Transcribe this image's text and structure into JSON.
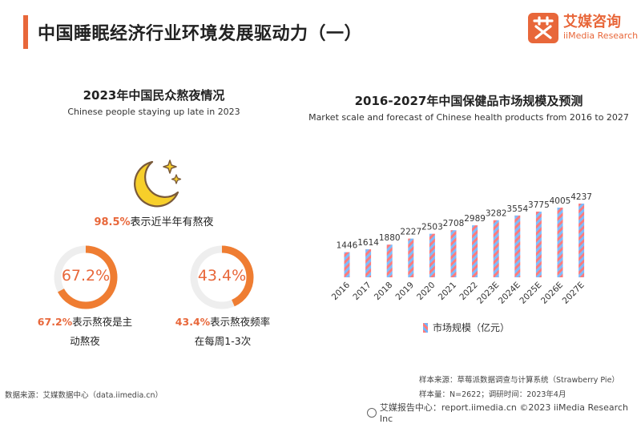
{
  "header": {
    "title": "中国睡眠经济行业环境发展驱动力（一）",
    "logo_cn": "艾媒咨询",
    "logo_en": "iiMedia Research",
    "accent_color": "#e8673a"
  },
  "left_panel": {
    "title": "2023年中国民众熬夜情况",
    "subtitle": "Chinese people staying up late in 2023",
    "moon_icon": "moon-stars-icon",
    "moon_stat": {
      "value": "98.5%",
      "text": "表示近半年有熬夜"
    },
    "donuts": [
      {
        "value_label": "67.2%",
        "fraction": 0.672,
        "cap_pct": "67.2%",
        "cap_line1": "表示熬夜是主",
        "cap_line2": "动熬夜"
      },
      {
        "value_label": "43.4%",
        "fraction": 0.434,
        "cap_pct": "43.4%",
        "cap_line1": "表示熬夜频率",
        "cap_line2": "在每周1-3次"
      }
    ]
  },
  "chart_data": {
    "type": "bar",
    "title": "2016-2027年中国保健品市场规模及预测",
    "subtitle": "Market scale and forecast of Chinese health products from 2016 to 2027",
    "categories": [
      "2016",
      "2017",
      "2018",
      "2019",
      "2020",
      "2021",
      "2022",
      "2023E",
      "2024E",
      "2025E",
      "2026E",
      "2027E"
    ],
    "series": [
      {
        "name": "市场规模（亿元）",
        "values": [
          1446,
          1614,
          1880,
          2227,
          2503,
          2708,
          2989,
          3282,
          3554,
          3775,
          4005,
          4237
        ]
      }
    ],
    "data_labels": [
      "1446",
      "1614",
      "1880",
      "2227",
      "2503",
      "2708",
      "2989",
      "3282",
      "3554",
      "3775",
      "4005",
      "4237"
    ],
    "legend": "bottom",
    "grid": false
  },
  "sources": {
    "sample_source": "样本来源：草莓派数据调查与计算系统（Strawberry Pie）",
    "sample_size": "样本量：N=2622；调研时间：2023年4月",
    "data_source": "数据来源：艾媒数据中心（data.iimedia.cn）",
    "footer": "艾媒报告中心：report.iimedia.cn ©2023 iiMedia Research Inc"
  }
}
